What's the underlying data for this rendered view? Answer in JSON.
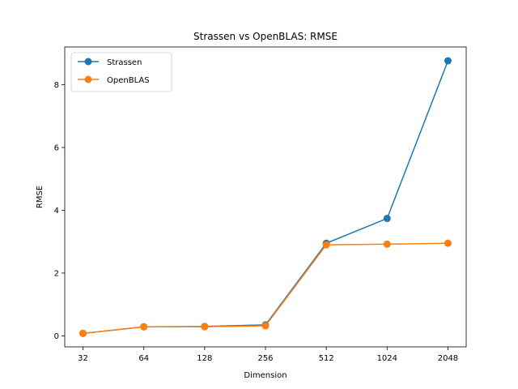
{
  "chart_data": {
    "type": "line",
    "title": "Strassen vs OpenBLAS: RMSE",
    "xlabel": "Dimension",
    "ylabel": "RMSE",
    "categories": [
      "32",
      "64",
      "128",
      "256",
      "512",
      "1024",
      "2048"
    ],
    "ylim": [
      -0.35,
      9.2
    ],
    "yticks": [
      0,
      2,
      4,
      6,
      8
    ],
    "grid": false,
    "legend_position": "upper-left",
    "marker": "circle",
    "series": [
      {
        "name": "Strassen",
        "color": "#1f77b4",
        "values": [
          0.08,
          0.29,
          0.3,
          0.35,
          2.95,
          3.74,
          8.76
        ]
      },
      {
        "name": "OpenBLAS",
        "color": "#ff7f0e",
        "values": [
          0.08,
          0.29,
          0.29,
          0.32,
          2.9,
          2.92,
          2.95
        ]
      }
    ]
  }
}
